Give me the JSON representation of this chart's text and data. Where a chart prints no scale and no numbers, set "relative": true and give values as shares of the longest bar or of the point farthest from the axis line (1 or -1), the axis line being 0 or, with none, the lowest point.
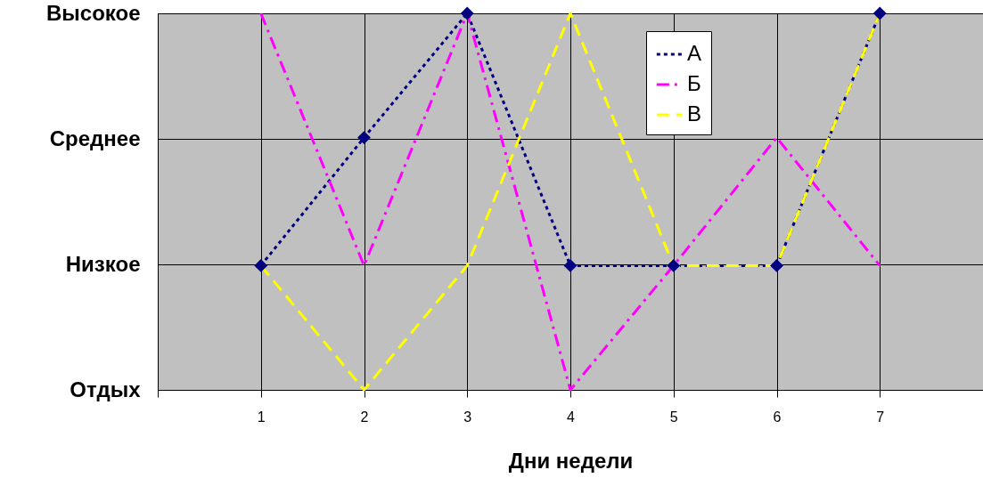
{
  "chart_data": {
    "type": "line",
    "xlabel": "Дни недели",
    "x": [
      1,
      2,
      3,
      4,
      5,
      6,
      7
    ],
    "xlim": [
      0,
      8
    ],
    "xticks": [
      {
        "value": 0,
        "label": null
      },
      1,
      2,
      3,
      4,
      5,
      6,
      7,
      {
        "value": 8,
        "label": null
      }
    ],
    "relative": true,
    "annotations": [
      "Высокое",
      "Среднее",
      "Низкое",
      "Отдых"
    ],
    "grid": true,
    "legend": "top right",
    "series": [
      {
        "name": "А",
        "color": "#000080",
        "values": [
          0.33,
          0.67,
          1,
          0.33,
          0.33,
          0.33,
          1
        ],
        "marker": "diamond",
        "line_style": "dotted"
      },
      {
        "name": "Б",
        "color": "#ff00ff",
        "values": [
          1,
          0.33,
          1,
          0,
          0.33,
          0.67,
          0.33
        ],
        "marker": "none",
        "line_style": "dashdot"
      },
      {
        "name": "В",
        "color": "#ffff00",
        "values": [
          0.33,
          0,
          0.33,
          1,
          0.33,
          0.33,
          1
        ],
        "marker": "none",
        "line_style": "dashed"
      }
    ]
  }
}
